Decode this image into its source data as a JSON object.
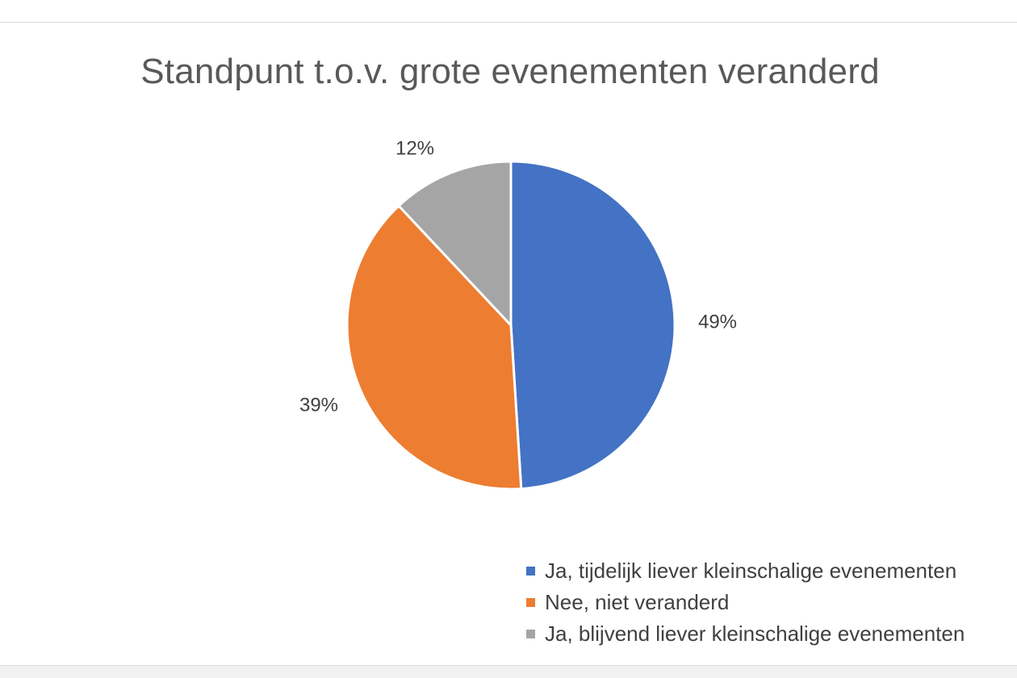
{
  "chart_data": {
    "type": "pie",
    "title": "Standpunt t.o.v. grote evenementen veranderd",
    "categories": [
      "Ja, tijdelijk liever kleinschalige evenementen",
      "Nee, niet veranderd",
      "Ja, blijvend liever kleinschalige evenementen"
    ],
    "values": [
      49,
      39,
      12
    ],
    "value_labels": [
      "49%",
      "39%",
      "12%"
    ],
    "colors": [
      "#4472c4",
      "#ed7d31",
      "#a5a5a5"
    ],
    "legend_position": "bottom-right"
  }
}
